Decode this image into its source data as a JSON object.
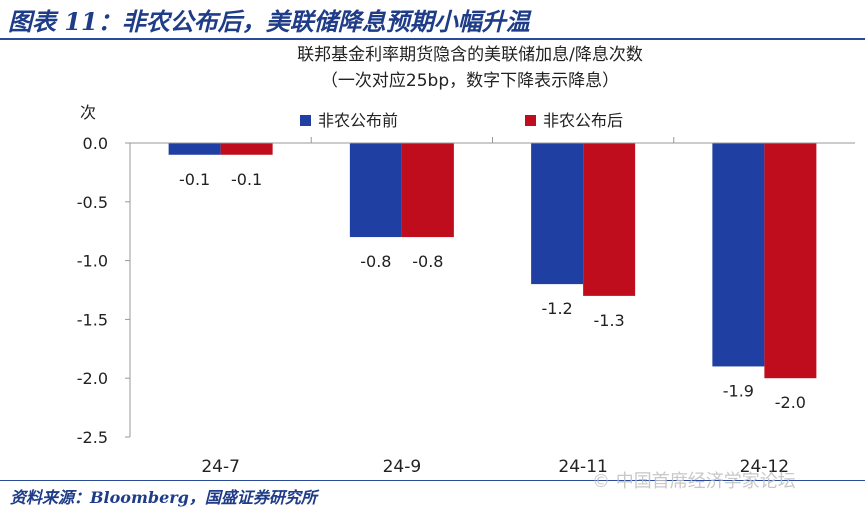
{
  "figure_title": "图表 11：非农公布后，美联储降息预期小幅升温",
  "source_note": "资料来源：Bloomberg，国盛证券研究所",
  "watermark": "© 中国首席经济学家论坛",
  "colors": {
    "before": "#1f3fa3",
    "after": "#c00d1e",
    "title_blue": "#1f3c88"
  },
  "chart_data": {
    "type": "bar",
    "title": "联邦基金利率期货隐含的美联储加息/降息次数",
    "subtitle": "（一次对应25bp，数字下降表示降息）",
    "ylabel": "次",
    "xlabel": "",
    "categories": [
      "24-7",
      "24-9",
      "24-11",
      "24-12"
    ],
    "series": [
      {
        "name": "非农公布前",
        "values": [
          -0.1,
          -0.8,
          -1.2,
          -1.9
        ],
        "labels": [
          "-0.1",
          "-0.8",
          "-1.2",
          "-1.9"
        ]
      },
      {
        "name": "非农公布后",
        "values": [
          -0.1,
          -0.8,
          -1.3,
          -2.0
        ],
        "labels": [
          "-0.1",
          "-0.8",
          "-1.3",
          "-2.0"
        ]
      }
    ],
    "ylim": [
      -2.5,
      0
    ],
    "yticks": [
      0,
      -0.5,
      -1.0,
      -1.5,
      -2.0,
      -2.5
    ],
    "ytick_labels": [
      "0.0",
      "-0.5",
      "-1.0",
      "-1.5",
      "-2.0",
      "-2.5"
    ],
    "grid": false,
    "legend_position": "top-right"
  }
}
